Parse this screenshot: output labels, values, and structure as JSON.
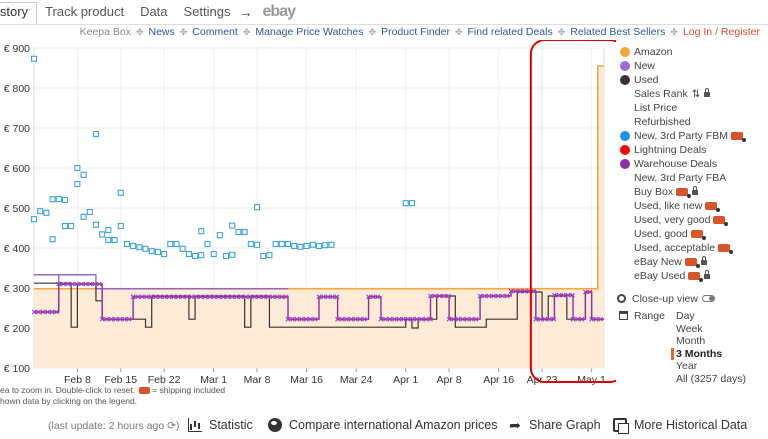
{
  "tabs": [
    {
      "label": "istory",
      "active": true
    },
    {
      "label": "Track product",
      "active": false
    },
    {
      "label": "Data",
      "active": false
    },
    {
      "label": "Settings",
      "active": false
    }
  ],
  "tabs_arrow": "→",
  "tabs_ebay": "ebay",
  "subnav": {
    "keepa_box": "Keepa Box",
    "links": [
      "News",
      "Comment",
      "Manage Price Watches",
      "Product Finder",
      "Find related Deals",
      "Related Best Sellers"
    ],
    "login": "Log In / Register"
  },
  "colors": {
    "amazon": "#f7a43b",
    "amazon_fill": "#fdebd7",
    "new": "#8a5fc8",
    "used": "#3e2f2f",
    "new_3p_fbm": "#1f91e6",
    "new_3p_fbm_marker": "#3aa3e0",
    "lightning": "#ff0000",
    "warehouse": "#8c2ea6",
    "warehouse_marker": "#9b3fc0",
    "annotation": "#e00000",
    "grid": "#eeeeee"
  },
  "legend": [
    {
      "label": "Amazon",
      "dot": "#f7a43b"
    },
    {
      "label": "New",
      "dot": "#9c6dd6"
    },
    {
      "label": "Used",
      "dot": "#3e2f2f"
    },
    {
      "label": "Sales Rank",
      "dot": null,
      "sort": true,
      "lock": true
    },
    {
      "label": "List Price",
      "dot": null
    },
    {
      "label": "Refurbished",
      "dot": null
    },
    {
      "label": "New, 3rd Party FBM",
      "dot": "#1f91e6",
      "badge": true
    },
    {
      "label": "Lightning Deals",
      "dot": "#ff0000"
    },
    {
      "label": "Warehouse Deals",
      "dot": "#8c2ea6"
    },
    {
      "label": "New, 3rd Party FBA",
      "dot": null
    },
    {
      "label": "Buy Box",
      "dot": null,
      "badge": true,
      "lock": true
    },
    {
      "label": "Used, like new",
      "dot": null,
      "badge": true
    },
    {
      "label": "Used, very good",
      "dot": null,
      "badge": true
    },
    {
      "label": "Used, good",
      "dot": null,
      "badge": true
    },
    {
      "label": "Used, acceptable",
      "dot": null,
      "badge": true
    },
    {
      "label": "eBay New",
      "dot": null,
      "badge": true,
      "lock": true
    },
    {
      "label": "eBay Used",
      "dot": null,
      "badge": true,
      "lock": true
    }
  ],
  "closeup": {
    "label": "Close-up view"
  },
  "range": {
    "label": "Range",
    "options": [
      "Day",
      "Week",
      "Month",
      "3 Months",
      "Year",
      "All (3257 days)"
    ],
    "selected": "3 Months"
  },
  "hints": {
    "line1_prefix": "ea to zoom in. Double-click to reset.",
    "line1_suffix": "= shipping included",
    "line2": "hown data by clicking on the legend."
  },
  "footer": {
    "last_update": "(last update: 2 hours ago",
    "last_update_close": ")",
    "statistic": "Statistic",
    "compare": "Compare international Amazon prices",
    "share": "Share Graph",
    "more": "More Historical Data"
  },
  "chart_data": {
    "type": "line",
    "ylim": [
      100,
      900
    ],
    "yticks": [
      "€ 100",
      "€ 200",
      "€ 300",
      "€ 400",
      "€ 500",
      "€ 600",
      "€ 700",
      "€ 800",
      "€ 900"
    ],
    "ytick_values": [
      100,
      200,
      300,
      400,
      500,
      600,
      700,
      800,
      900
    ],
    "xrange": [
      "2024-02-01",
      "2024-05-03"
    ],
    "xticks": [
      {
        "label": "Feb 8",
        "date": "2024-02-08"
      },
      {
        "label": "Feb 15",
        "date": "2024-02-15"
      },
      {
        "label": "Feb 22",
        "date": "2024-02-22"
      },
      {
        "label": "Mar 1",
        "date": "2024-03-01"
      },
      {
        "label": "Mar 8",
        "date": "2024-03-08"
      },
      {
        "label": "Mar 16",
        "date": "2024-03-16"
      },
      {
        "label": "Mar 24",
        "date": "2024-03-24"
      },
      {
        "label": "Apr 1",
        "date": "2024-04-01"
      },
      {
        "label": "Apr 8",
        "date": "2024-04-08"
      },
      {
        "label": "Apr 16",
        "date": "2024-04-16"
      },
      {
        "label": "Apr 23",
        "date": "2024-04-23"
      },
      {
        "label": "May 1",
        "date": "2024-05-01"
      }
    ],
    "series": [
      {
        "name": "Amazon",
        "kind": "step-area",
        "points": [
          [
            "2024-02-01",
            298
          ],
          [
            "2024-02-14",
            298
          ],
          [
            "2024-03-13",
            298
          ],
          [
            "2024-05-02",
            298
          ],
          [
            "2024-05-02",
            855
          ],
          [
            "2024-05-03",
            855
          ]
        ]
      },
      {
        "name": "New",
        "kind": "step",
        "points": [
          [
            "2024-02-01",
            333
          ],
          [
            "2024-02-05",
            333
          ],
          [
            "2024-02-05",
            240
          ],
          [
            "2024-02-05",
            333
          ],
          [
            "2024-02-11",
            333
          ],
          [
            "2024-02-11",
            298
          ],
          [
            "2024-03-13",
            298
          ]
        ]
      },
      {
        "name": "Used",
        "kind": "step",
        "points": [
          [
            "2024-02-01",
            312
          ],
          [
            "2024-02-05",
            312
          ],
          [
            "2024-02-07",
            202
          ],
          [
            "2024-02-08",
            310
          ],
          [
            "2024-02-10",
            310
          ],
          [
            "2024-02-11",
            268
          ],
          [
            "2024-02-12",
            222
          ],
          [
            "2024-02-18",
            222
          ],
          [
            "2024-02-19",
            202
          ],
          [
            "2024-02-20",
            280
          ],
          [
            "2024-02-24",
            280
          ],
          [
            "2024-02-26",
            222
          ],
          [
            "2024-02-27",
            280
          ],
          [
            "2024-03-04",
            280
          ],
          [
            "2024-03-06",
            202
          ],
          [
            "2024-03-07",
            280
          ],
          [
            "2024-03-09",
            280
          ],
          [
            "2024-03-10",
            202
          ],
          [
            "2024-03-31",
            202
          ],
          [
            "2024-04-01",
            222
          ],
          [
            "2024-04-02",
            200
          ],
          [
            "2024-04-03",
            222
          ],
          [
            "2024-04-05",
            222
          ],
          [
            "2024-04-06",
            280
          ],
          [
            "2024-04-08",
            280
          ],
          [
            "2024-04-09",
            202
          ],
          [
            "2024-04-13",
            202
          ],
          [
            "2024-04-14",
            222
          ],
          [
            "2024-04-18",
            222
          ],
          [
            "2024-04-19",
            290
          ],
          [
            "2024-04-22",
            290
          ],
          [
            "2024-04-23",
            222
          ],
          [
            "2024-04-24",
            280
          ],
          [
            "2024-04-26",
            280
          ],
          [
            "2024-04-27",
            222
          ],
          [
            "2024-04-29",
            222
          ],
          [
            "2024-04-30",
            290
          ],
          [
            "2024-05-01",
            222
          ],
          [
            "2024-05-03",
            222
          ]
        ]
      },
      {
        "name": "New, 3rd Party FBM",
        "kind": "points",
        "points": [
          [
            "2024-02-01",
            472
          ],
          [
            "2024-02-01",
            873
          ],
          [
            "2024-02-02",
            492
          ],
          [
            "2024-02-03",
            488
          ],
          [
            "2024-02-04",
            422
          ],
          [
            "2024-02-04",
            522
          ],
          [
            "2024-02-05",
            522
          ],
          [
            "2024-02-06",
            520
          ],
          [
            "2024-02-06",
            455
          ],
          [
            "2024-02-07",
            455
          ],
          [
            "2024-02-08",
            560
          ],
          [
            "2024-02-08",
            600
          ],
          [
            "2024-02-09",
            583
          ],
          [
            "2024-02-09",
            478
          ],
          [
            "2024-02-10",
            490
          ],
          [
            "2024-02-11",
            685
          ],
          [
            "2024-02-11",
            458
          ],
          [
            "2024-02-12",
            434
          ],
          [
            "2024-02-13",
            445
          ],
          [
            "2024-02-13",
            420
          ],
          [
            "2024-02-14",
            420
          ],
          [
            "2024-02-15",
            538
          ],
          [
            "2024-02-15",
            455
          ],
          [
            "2024-02-16",
            410
          ],
          [
            "2024-02-17",
            405
          ],
          [
            "2024-02-18",
            402
          ],
          [
            "2024-02-19",
            398
          ],
          [
            "2024-02-20",
            392
          ],
          [
            "2024-02-21",
            390
          ],
          [
            "2024-02-22",
            385
          ],
          [
            "2024-02-23",
            410
          ],
          [
            "2024-02-24",
            410
          ],
          [
            "2024-02-25",
            398
          ],
          [
            "2024-02-26",
            385
          ],
          [
            "2024-02-27",
            380
          ],
          [
            "2024-02-28",
            382
          ],
          [
            "2024-02-28",
            442
          ],
          [
            "2024-02-29",
            410
          ],
          [
            "2024-03-01",
            385
          ],
          [
            "2024-03-02",
            432
          ],
          [
            "2024-03-03",
            380
          ],
          [
            "2024-03-04",
            456
          ],
          [
            "2024-03-04",
            383
          ],
          [
            "2024-03-05",
            440
          ],
          [
            "2024-03-06",
            440
          ],
          [
            "2024-03-07",
            410
          ],
          [
            "2024-03-08",
            408
          ],
          [
            "2024-03-08",
            502
          ],
          [
            "2024-03-09",
            380
          ],
          [
            "2024-03-10",
            382
          ],
          [
            "2024-03-11",
            410
          ],
          [
            "2024-03-12",
            410
          ],
          [
            "2024-03-13",
            410
          ],
          [
            "2024-03-14",
            405
          ],
          [
            "2024-03-15",
            403
          ],
          [
            "2024-03-16",
            405
          ],
          [
            "2024-03-17",
            408
          ],
          [
            "2024-03-18",
            405
          ],
          [
            "2024-03-19",
            407
          ],
          [
            "2024-03-20",
            408
          ],
          [
            "2024-04-01",
            512
          ],
          [
            "2024-04-02",
            512
          ]
        ]
      },
      {
        "name": "Warehouse Deals",
        "kind": "step-markers",
        "points": [
          [
            "2024-02-01",
            240
          ],
          [
            "2024-02-05",
            240
          ],
          [
            "2024-02-05",
            310
          ],
          [
            "2024-02-12",
            310
          ],
          [
            "2024-02-12",
            222
          ],
          [
            "2024-02-17",
            222
          ],
          [
            "2024-02-17",
            278
          ],
          [
            "2024-03-13",
            278
          ],
          [
            "2024-03-13",
            222
          ],
          [
            "2024-03-18",
            222
          ],
          [
            "2024-03-18",
            278
          ],
          [
            "2024-03-21",
            278
          ],
          [
            "2024-03-21",
            222
          ],
          [
            "2024-03-26",
            222
          ],
          [
            "2024-03-26",
            278
          ],
          [
            "2024-03-28",
            278
          ],
          [
            "2024-03-28",
            222
          ],
          [
            "2024-04-05",
            222
          ],
          [
            "2024-04-05",
            280
          ],
          [
            "2024-04-08",
            280
          ],
          [
            "2024-04-08",
            222
          ],
          [
            "2024-04-13",
            222
          ],
          [
            "2024-04-13",
            280
          ],
          [
            "2024-04-18",
            280
          ],
          [
            "2024-04-18",
            292
          ],
          [
            "2024-04-22",
            292
          ],
          [
            "2024-04-22",
            222
          ],
          [
            "2024-04-25",
            222
          ],
          [
            "2024-04-25",
            282
          ],
          [
            "2024-04-28",
            282
          ],
          [
            "2024-04-28",
            222
          ],
          [
            "2024-04-30",
            222
          ],
          [
            "2024-04-30",
            290
          ],
          [
            "2024-05-01",
            290
          ],
          [
            "2024-05-01",
            222
          ],
          [
            "2024-05-03",
            222
          ]
        ]
      }
    ],
    "annotation": {
      "type": "rounded-rect",
      "from": "2024-04-22",
      "to": "2024-05-03",
      "color": "#e00000"
    },
    "grid": true,
    "legend": "right"
  }
}
